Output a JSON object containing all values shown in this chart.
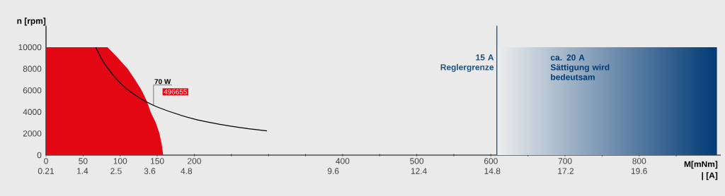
{
  "chart_data": {
    "type": "line",
    "xlabel": "M[mNm]",
    "x2label": "| [A]",
    "ylabel": "n [rpm]",
    "series": [
      {
        "type": "area",
        "color": "#e30613",
        "x": [
          0,
          83,
          97,
          110,
          120,
          129,
          136,
          141,
          148,
          153,
          156,
          158
        ],
        "values": [
          10000,
          10000,
          9000,
          8000,
          7000,
          6000,
          5000,
          4000,
          3000,
          2000,
          1000,
          0
        ]
      },
      {
        "color": "#000000",
        "x": [
          67,
          80,
          100,
          120,
          150,
          200,
          250,
          298
        ],
        "values": [
          9980,
          8360,
          6690,
          5570,
          4460,
          3340,
          2670,
          2240
        ]
      }
    ],
    "xlim": [
      0,
      910
    ],
    "ylim": [
      0,
      12000
    ],
    "xticks": [
      0,
      50,
      100,
      150,
      200,
      {
        "value": 250,
        "label": null
      },
      {
        "value": 300,
        "label": null
      },
      {
        "value": 350,
        "label": null
      },
      400,
      {
        "value": 450,
        "label": null
      },
      500,
      {
        "value": 550,
        "label": null
      },
      600,
      {
        "value": 650,
        "label": null
      },
      700,
      {
        "value": 750,
        "label": null
      },
      800,
      {
        "value": 850,
        "label": null
      }
    ],
    "yticks": [
      0,
      2000,
      4000,
      6000,
      8000,
      10000
    ],
    "x2lim": [
      0.21,
      22.27
    ],
    "x2ticks": [
      0.21,
      1.4,
      2.5,
      3.6,
      4.8,
      9.6,
      12.4,
      14.8,
      17.2,
      19.6
    ],
    "ref_lines": [
      {
        "axis": "x",
        "value": 608,
        "label": "15 A\nReglergrenze",
        "color": "#1d4f80"
      }
    ],
    "bands": [
      {
        "axis": "x",
        "from": 608,
        "to": 905,
        "label": "ca. 20 A\nSättigung wird\nbedeutsam",
        "color": "#003a75"
      }
    ],
    "annotations": [
      {
        "text": "70 W",
        "x": 145,
        "y": 4610
      },
      "496655"
    ],
    "grid": false
  }
}
